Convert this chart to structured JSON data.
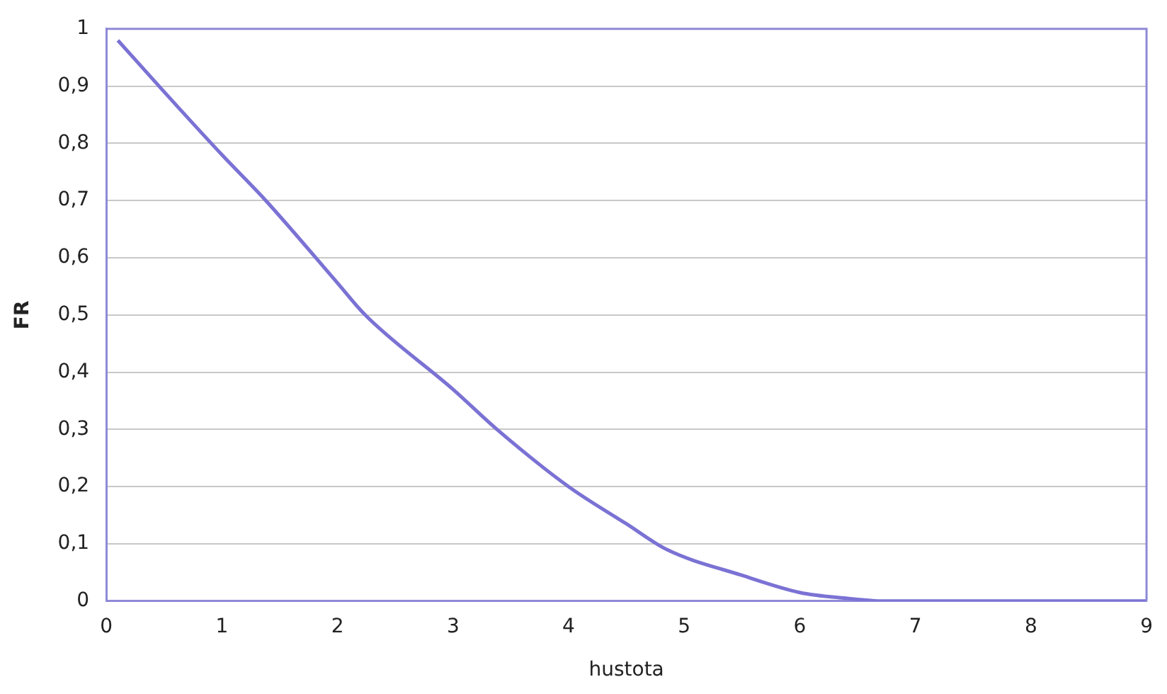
{
  "chart_data": {
    "type": "line",
    "xlabel": "hustota",
    "ylabel": "FR",
    "x": [
      0.1,
      0.5,
      1,
      1.38,
      2,
      2.24,
      3,
      3.38,
      4,
      4.5,
      4.85,
      5.5,
      6,
      6.4,
      6.73,
      7,
      8,
      9
    ],
    "series": [
      {
        "color": "#7b72d4",
        "values": [
          0.98,
          0.89,
          0.78,
          0.7,
          0.556,
          0.5,
          0.37,
          0.3,
          0.2,
          0.135,
          0.09,
          0.045,
          0.015,
          0.005,
          0,
          0,
          0,
          0
        ]
      }
    ],
    "xlim": [
      0,
      9
    ],
    "xticks": [
      0,
      1,
      2,
      3,
      4,
      5,
      6,
      7,
      8,
      9
    ],
    "ylim": [
      0,
      1
    ],
    "yticks": [
      0,
      {
        "value": 0.1,
        "label": "0,1"
      },
      {
        "value": 0.2,
        "label": "0,2"
      },
      {
        "value": 0.3,
        "label": "0,3"
      },
      {
        "value": 0.4,
        "label": "0,4"
      },
      {
        "value": 0.5,
        "label": "0,5"
      },
      {
        "value": 0.6,
        "label": "0,6"
      },
      {
        "value": 0.7,
        "label": "0,7"
      },
      {
        "value": 0.8,
        "label": "0,8"
      },
      {
        "value": 0.9,
        "label": "0,9"
      },
      1
    ],
    "grid": "y",
    "marker": "none",
    "line_style": "solid",
    "legend": false
  }
}
